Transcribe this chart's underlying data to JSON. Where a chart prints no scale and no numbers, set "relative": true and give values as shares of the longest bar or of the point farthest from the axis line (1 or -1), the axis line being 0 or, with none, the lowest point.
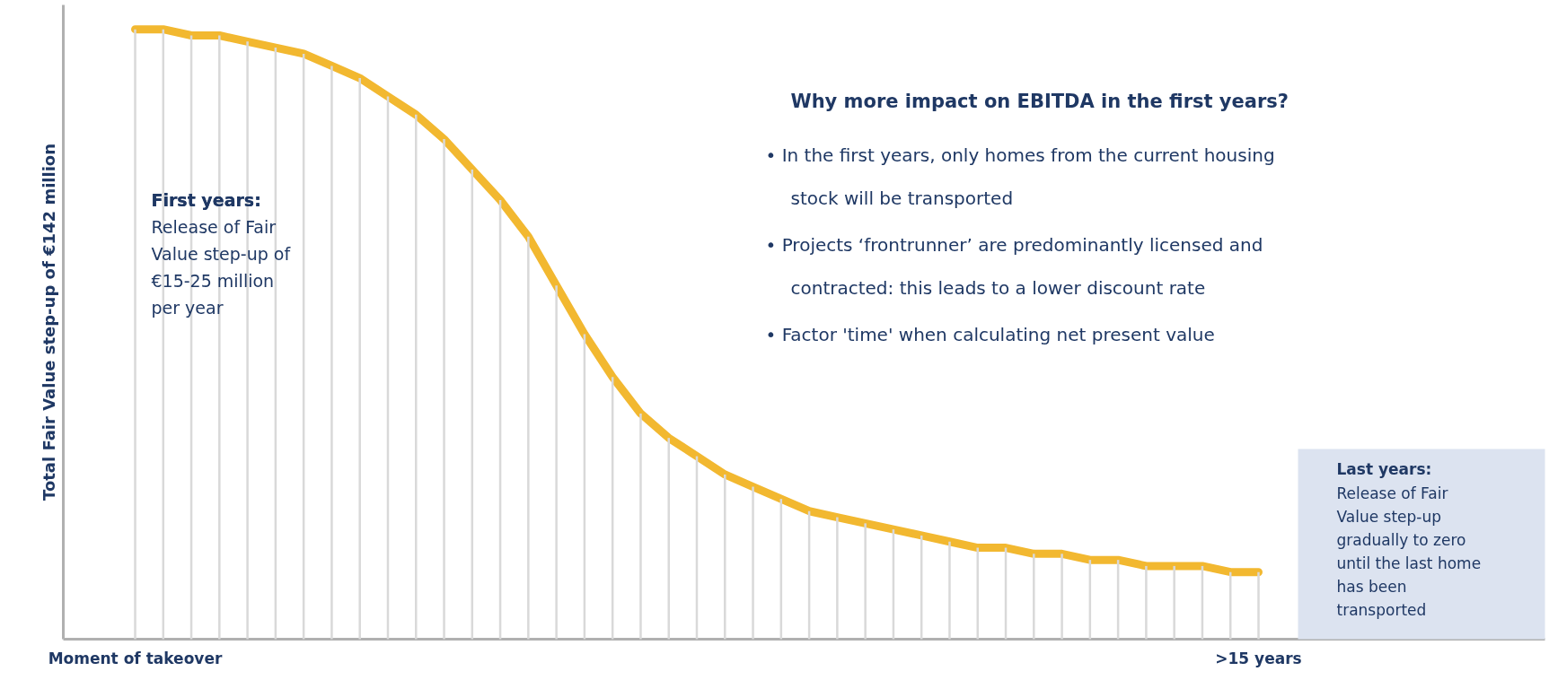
{
  "chart_data": {
    "type": "line",
    "relative": true,
    "ylabel": "Total Fair Value step-up of €142 million",
    "categories": [
      "Moment of takeover",
      null,
      null,
      null,
      null,
      null,
      null,
      null,
      null,
      null,
      null,
      null,
      null,
      null,
      null,
      null,
      null,
      null,
      null,
      null,
      null,
      null,
      null,
      null,
      null,
      null,
      null,
      null,
      null,
      null,
      null,
      null,
      null,
      null,
      null,
      null,
      null,
      null,
      null,
      null,
      ">15 years"
    ],
    "series": [
      {
        "type": "bar",
        "color": "#d9d9d9",
        "values": [
          1.0,
          1.0,
          0.99,
          0.99,
          0.98,
          0.97,
          0.96,
          0.94,
          0.92,
          0.89,
          0.86,
          0.82,
          0.77,
          0.72,
          0.66,
          0.58,
          0.5,
          0.43,
          0.37,
          0.33,
          0.3,
          0.27,
          0.25,
          0.23,
          0.21,
          0.2,
          0.19,
          0.18,
          0.17,
          0.16,
          0.15,
          0.15,
          0.14,
          0.14,
          0.13,
          0.13,
          0.12,
          0.12,
          0.12,
          0.11,
          0.11
        ]
      },
      {
        "color": "#f2b830",
        "values": [
          1.0,
          1.0,
          0.99,
          0.99,
          0.98,
          0.97,
          0.96,
          0.94,
          0.92,
          0.89,
          0.86,
          0.82,
          0.77,
          0.72,
          0.66,
          0.58,
          0.5,
          0.43,
          0.37,
          0.33,
          0.3,
          0.27,
          0.25,
          0.23,
          0.21,
          0.2,
          0.19,
          0.18,
          0.17,
          0.16,
          0.15,
          0.15,
          0.14,
          0.14,
          0.13,
          0.13,
          0.12,
          0.12,
          0.12,
          0.11,
          0.11
        ]
      }
    ],
    "annotations": [
      "Why more impact on EBITDA in the first years?",
      "•  In the first years, only homes from the current housing\nstock will be transported",
      "•  Projects ‘frontrunner’ are predominantly licensed and\ncontracted: this leads to a lower discount rate",
      "•  Factor 'time' when calculating net present value",
      "First years:",
      "Release of Fair\nValue step-up of\n€15-25 million\nper year",
      "Last years:",
      "Release of Fair\nValue step-up\ngradually to zero\nuntil the last home\nhas been\ntransported"
    ],
    "grid": false,
    "marker": "none",
    "line_style": "solid"
  }
}
